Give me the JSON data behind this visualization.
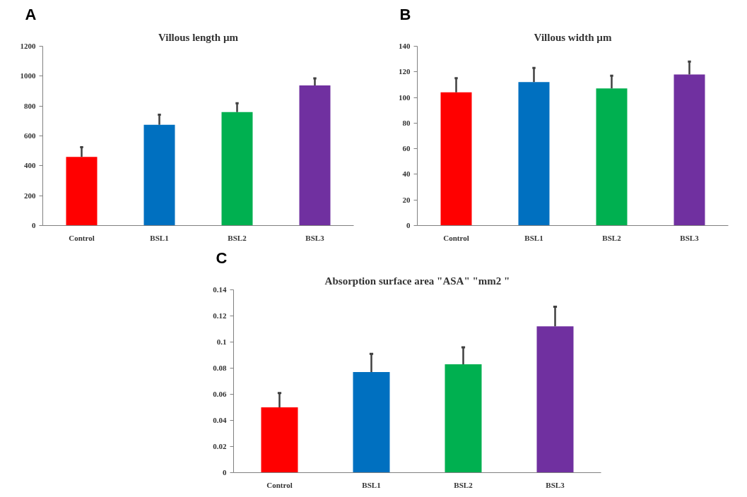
{
  "chart_data": [
    {
      "type": "bar",
      "title": "Villous length µm",
      "annotations": [
        "A"
      ],
      "categories": [
        "Control",
        "BSL1",
        "BSL2",
        "BSL3"
      ],
      "values": [
        460,
        675,
        760,
        938
      ],
      "colors": [
        "#ff0000",
        "#0070c0",
        "#00b050",
        "#7030a0"
      ],
      "errors": [
        [
          460,
          525
        ],
        [
          675,
          742
        ],
        [
          760,
          818
        ],
        [
          938,
          985
        ]
      ],
      "ylim": [
        0,
        1200
      ],
      "yticks": [
        0,
        200,
        400,
        600,
        800,
        1000,
        1200
      ],
      "grid": false,
      "legend": false
    },
    {
      "type": "bar",
      "title": "Villous width µm",
      "annotations": [
        "B"
      ],
      "categories": [
        "Control",
        "BSL1",
        "BSL2",
        "BSL3"
      ],
      "values": [
        104,
        112,
        107,
        118
      ],
      "colors": [
        "#ff0000",
        "#0070c0",
        "#00b050",
        "#7030a0"
      ],
      "errors": [
        [
          104,
          115
        ],
        [
          112,
          123
        ],
        [
          107,
          117
        ],
        [
          118,
          128
        ]
      ],
      "ylim": [
        0,
        140
      ],
      "yticks": [
        0,
        20,
        40,
        60,
        80,
        100,
        120,
        140
      ],
      "grid": false,
      "legend": false
    },
    {
      "type": "bar",
      "title": "Absorption surface area \"ASA\" \"mm2 \"",
      "annotations": [
        "C"
      ],
      "categories": [
        "Control",
        "BSL1",
        "BSL2",
        "BSL3"
      ],
      "values": [
        0.05,
        0.077,
        0.083,
        0.112
      ],
      "colors": [
        "#ff0000",
        "#0070c0",
        "#00b050",
        "#7030a0"
      ],
      "errors": [
        [
          0.05,
          0.061
        ],
        [
          0.077,
          0.091
        ],
        [
          0.083,
          0.096
        ],
        [
          0.112,
          0.127
        ]
      ],
      "ylim": [
        0,
        0.14
      ],
      "yticks": [
        0,
        0.02,
        0.04,
        0.06,
        0.08,
        0.1,
        0.12,
        0.14
      ],
      "grid": false,
      "legend": false
    }
  ]
}
